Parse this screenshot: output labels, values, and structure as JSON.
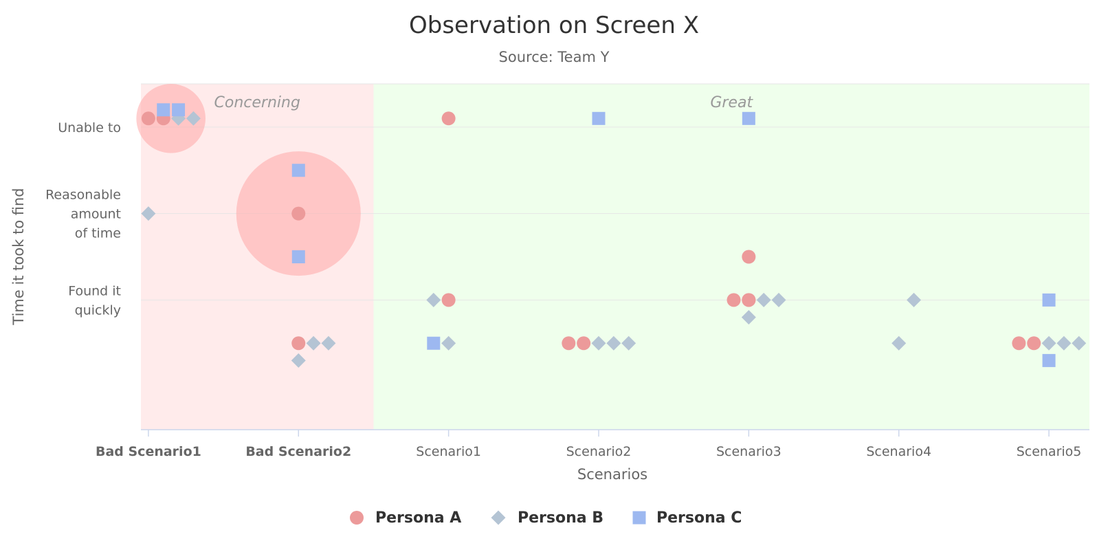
{
  "chart_data": {
    "type": "scatter",
    "title": "Observation on Screen X",
    "subtitle": "Source: Team Y",
    "xlabel": "Scenarios",
    "ylabel": "Time it took to find",
    "categories": [
      "Bad Scenario1",
      "Bad Scenario2",
      "Scenario1",
      "Scenario2",
      "Scenario3",
      "Scenario4",
      "Scenario5"
    ],
    "bold_categories": [
      "Bad Scenario1",
      "Bad Scenario2"
    ],
    "xlim": [
      -0.05,
      6.27
    ],
    "ylim": [
      -0.5,
      3.5
    ],
    "y_ticks": [
      {
        "value": 1,
        "label": [
          "Found it",
          "quickly"
        ]
      },
      {
        "value": 2,
        "label": [
          "Reasonable",
          "amount",
          "of time"
        ]
      },
      {
        "value": 3,
        "label": [
          "Unable to"
        ]
      }
    ],
    "grid": "horizontal",
    "legend_position": "bottom-center",
    "plot_bands": [
      {
        "from": -0.05,
        "to": 1.5,
        "label": "Concerning",
        "color": "#ffebeb"
      },
      {
        "from": 1.5,
        "to": 6.27,
        "label": "Great",
        "color": "#efffec"
      }
    ],
    "highlight_bubbles": [
      {
        "x": 0.15,
        "y": 3.1,
        "radius_y": 0.4,
        "color": "#ffa8a8"
      },
      {
        "x": 1.0,
        "y": 2.0,
        "radius_y": 0.72,
        "color": "#ffa8a8"
      }
    ],
    "series": [
      {
        "name": "Persona A",
        "marker": "circle",
        "color": "#ec9a9a",
        "points": [
          {
            "x": 0.0,
            "y": 3.1
          },
          {
            "x": 0.1,
            "y": 3.1
          },
          {
            "x": 1.0,
            "y": 2.0
          },
          {
            "x": 1.0,
            "y": 0.5
          },
          {
            "x": 2.0,
            "y": 3.1
          },
          {
            "x": 2.0,
            "y": 1.0
          },
          {
            "x": 2.8,
            "y": 0.5
          },
          {
            "x": 2.9,
            "y": 0.5
          },
          {
            "x": 4.0,
            "y": 1.5
          },
          {
            "x": 4.0,
            "y": 1.0
          },
          {
            "x": 3.9,
            "y": 1.0
          },
          {
            "x": 4.0,
            "y": 1.0
          },
          {
            "x": 5.8,
            "y": 0.5
          },
          {
            "x": 5.9,
            "y": 0.5
          }
        ]
      },
      {
        "name": "Persona B",
        "marker": "diamond",
        "color": "#b4c4d4",
        "points": [
          {
            "x": 0.2,
            "y": 3.1
          },
          {
            "x": 0.3,
            "y": 3.1
          },
          {
            "x": 0.0,
            "y": 2.0
          },
          {
            "x": 1.1,
            "y": 0.5
          },
          {
            "x": 1.2,
            "y": 0.5
          },
          {
            "x": 1.0,
            "y": 0.3
          },
          {
            "x": 1.9,
            "y": 1.0
          },
          {
            "x": 2.0,
            "y": 0.5
          },
          {
            "x": 3.0,
            "y": 0.5
          },
          {
            "x": 3.1,
            "y": 0.5
          },
          {
            "x": 3.2,
            "y": 0.5
          },
          {
            "x": 4.1,
            "y": 1.0
          },
          {
            "x": 4.2,
            "y": 1.0
          },
          {
            "x": 4.0,
            "y": 0.8
          },
          {
            "x": 5.1,
            "y": 1.0
          },
          {
            "x": 5.0,
            "y": 0.5
          },
          {
            "x": 6.0,
            "y": 0.5
          },
          {
            "x": 6.1,
            "y": 0.5
          },
          {
            "x": 6.2,
            "y": 0.5
          }
        ]
      },
      {
        "name": "Persona C",
        "marker": "square",
        "color": "#9db8f0",
        "points": [
          {
            "x": 0.1,
            "y": 3.2
          },
          {
            "x": 0.2,
            "y": 3.2
          },
          {
            "x": 1.0,
            "y": 2.5
          },
          {
            "x": 1.0,
            "y": 1.5
          },
          {
            "x": 3.0,
            "y": 3.1
          },
          {
            "x": 4.0,
            "y": 3.1
          },
          {
            "x": 1.9,
            "y": 0.5
          },
          {
            "x": 6.0,
            "y": 1.0
          },
          {
            "x": 6.0,
            "y": 0.3
          }
        ]
      }
    ]
  }
}
